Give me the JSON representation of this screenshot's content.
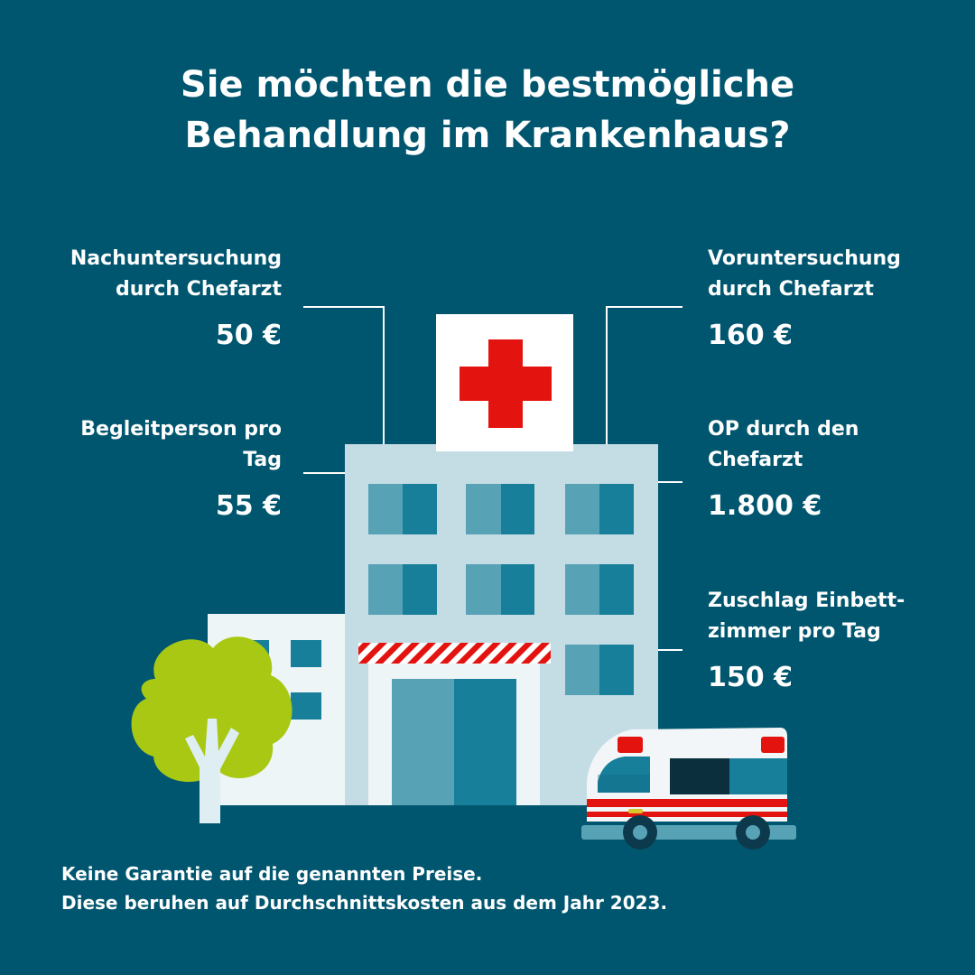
{
  "title": {
    "line1": "Sie möchten die bestmögliche",
    "line2": "Behandlung im Krankenhaus?"
  },
  "costs": {
    "followup_exam": {
      "line1": "Nachuntersuchung",
      "line2": "durch Chefarzt",
      "price": "50 €"
    },
    "companion": {
      "line1": "Begleitperson pro",
      "line2": "Tag",
      "price": "55 €"
    },
    "pre_exam": {
      "line1": "Voruntersuchung",
      "line2": "durch Chefarzt",
      "price": "160 €"
    },
    "surgery": {
      "line1": "OP durch den",
      "line2": "Chefarzt",
      "price": "1.800 €"
    },
    "single_room": {
      "line1": "Zuschlag Einbett-",
      "line2": "zimmer pro Tag",
      "price": "150 €"
    }
  },
  "disclaimer": {
    "line1": "Keine Garantie auf die genannten Preise.",
    "line2": "Diese beruhen auf Durchschnittskosten aus dem Jahr 2023."
  },
  "colors": {
    "background": "#00566f",
    "building": "#c4dde5",
    "window_light": "#58a2b6",
    "window_dark": "#177f9a",
    "cross": "#e3130f",
    "tree": "#a8c813"
  },
  "icons": {
    "hospital": "hospital-building-icon",
    "cross": "red-cross-icon",
    "tree": "tree-icon",
    "ambulance": "ambulance-icon"
  }
}
